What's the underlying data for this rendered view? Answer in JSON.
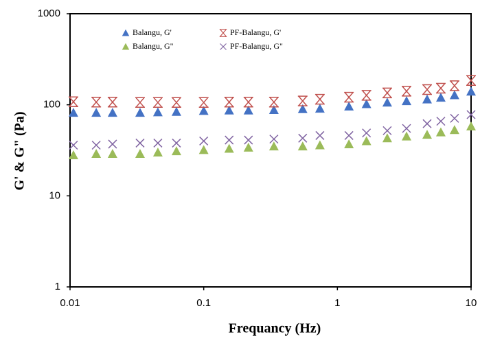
{
  "chart_data": {
    "type": "scatter",
    "xlabel": "Frequancy (Hz)",
    "ylabel": "G' & G\" (Pa)",
    "xscale": "log",
    "yscale": "log",
    "xlim": [
      0.01,
      10
    ],
    "ylim": [
      1,
      1000
    ],
    "xticks": [
      0.01,
      0.1,
      1,
      10
    ],
    "yticks": [
      1,
      10,
      100,
      1000
    ],
    "grid": false,
    "x": [
      0.0106,
      0.0157,
      0.0208,
      0.0334,
      0.0454,
      0.0625,
      0.1,
      0.155,
      0.216,
      0.335,
      0.55,
      0.74,
      1.22,
      1.65,
      2.36,
      3.29,
      4.69,
      5.94,
      7.52,
      10
    ],
    "series": [
      {
        "name": "Balangu, G'",
        "color": "#4472c4",
        "marker": "triangle",
        "values": [
          82,
          82,
          82,
          82,
          83,
          84,
          86,
          87,
          87,
          88,
          90,
          91,
          96,
          102,
          106,
          110,
          115,
          120,
          128,
          140
        ]
      },
      {
        "name": "PF-Balangu, G'",
        "color": "#c0504d",
        "marker": "asterisk",
        "values": [
          108,
          107,
          107,
          106,
          106,
          106,
          106,
          107,
          107,
          107,
          110,
          115,
          121,
          127,
          135,
          141,
          147,
          152,
          162,
          185
        ]
      },
      {
        "name": "Balangu, G\"",
        "color": "#9bbb59",
        "marker": "triangle",
        "values": [
          28,
          29,
          29,
          29,
          30,
          31,
          32,
          33,
          34,
          35,
          35,
          36,
          37,
          40,
          43,
          45,
          47,
          50,
          53,
          58
        ]
      },
      {
        "name": "PF-Balangu, G\"",
        "color": "#8064a2",
        "marker": "cross",
        "values": [
          36,
          36,
          37,
          38,
          38,
          38,
          40,
          41,
          41,
          42,
          43,
          46,
          46,
          49,
          52,
          55,
          62,
          66,
          71,
          78
        ]
      }
    ]
  }
}
